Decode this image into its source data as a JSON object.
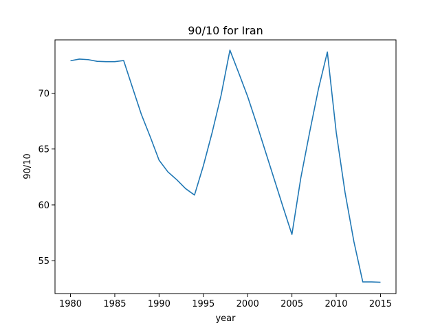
{
  "chart_data": {
    "type": "line",
    "title": "90/10 for Iran",
    "xlabel": "year",
    "ylabel": "90/10",
    "xlim": [
      1978.25,
      2016.75
    ],
    "ylim": [
      52.06,
      74.77
    ],
    "x_ticks": [
      1980,
      1985,
      1990,
      1995,
      2000,
      2005,
      2010,
      2015
    ],
    "y_ticks": [
      55,
      60,
      65,
      70
    ],
    "grid": false,
    "colors": {
      "line": "#1f77b4",
      "axis": "#000000",
      "background": "#ffffff"
    },
    "series": [
      {
        "x": [
          1980,
          1981,
          1982,
          1983,
          1984,
          1985,
          1986,
          1987,
          1988,
          1989,
          1990,
          1991,
          1992,
          1993,
          1994,
          1995,
          1996,
          1997,
          1998,
          1999,
          2000,
          2001,
          2002,
          2003,
          2004,
          2005,
          2006,
          2007,
          2008,
          2009,
          2010,
          2011,
          2012,
          2013,
          2014,
          2015
        ],
        "y": [
          72.9,
          73.05,
          73.0,
          72.85,
          72.82,
          72.82,
          72.92,
          70.5,
          68.1,
          66.1,
          64.0,
          62.95,
          62.25,
          61.45,
          60.88,
          63.5,
          66.5,
          69.8,
          73.85,
          71.8,
          69.7,
          67.3,
          64.8,
          62.3,
          59.8,
          57.35,
          62.4,
          66.5,
          70.4,
          73.68,
          66.5,
          61.1,
          56.7,
          53.1,
          53.1,
          53.07
        ]
      }
    ]
  }
}
